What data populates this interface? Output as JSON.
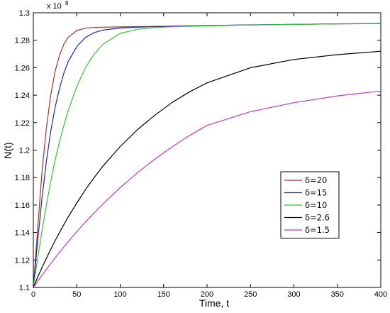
{
  "chart_data": {
    "type": "line",
    "title": "",
    "xlabel": "Time, t",
    "ylabel": "N(t)",
    "y_scale_label": "x 10",
    "y_scale_exponent": "8",
    "xlim": [
      0,
      400
    ],
    "ylim": [
      1.1,
      1.3
    ],
    "x_ticks": [
      0,
      50,
      100,
      150,
      200,
      250,
      300,
      350,
      400
    ],
    "y_ticks": [
      1.1,
      1.12,
      1.14,
      1.16,
      1.18,
      1.2,
      1.22,
      1.24,
      1.26,
      1.28,
      1.3
    ],
    "y_tick_labels": [
      "1.1",
      "1.12",
      "1.14",
      "1.16",
      "1.18",
      "1.2",
      "1.22",
      "1.24",
      "1.26",
      "1.28",
      "1.3"
    ],
    "grid": false,
    "legend_position": "center-right",
    "x": [
      0,
      5,
      10,
      15,
      20,
      25,
      30,
      35,
      40,
      50,
      60,
      70,
      80,
      100,
      120,
      140,
      160,
      180,
      200,
      250,
      300,
      350,
      400
    ],
    "series": [
      {
        "name": "δ=20",
        "color": "#b03020",
        "values": [
          1.1,
          1.1428,
          1.1847,
          1.2161,
          1.24,
          1.2572,
          1.2689,
          1.277,
          1.282,
          1.2871,
          1.2888,
          1.2893,
          1.2895,
          1.2897,
          1.2899,
          1.2901,
          1.2903,
          1.2905,
          1.2907,
          1.2911,
          1.2915,
          1.2919,
          1.2922
        ]
      },
      {
        "name": "δ=15",
        "color": "#2020c8",
        "values": [
          1.1,
          1.1338,
          1.1652,
          1.1918,
          1.2135,
          1.2309,
          1.2447,
          1.2558,
          1.2643,
          1.2754,
          1.282,
          1.2856,
          1.2874,
          1.2889,
          1.2895,
          1.2899,
          1.2902,
          1.2905,
          1.2907,
          1.2912,
          1.2916,
          1.292,
          1.2923
        ]
      },
      {
        "name": "δ=10",
        "color": "#30c830",
        "values": [
          1.1,
          1.1213,
          1.1415,
          1.16,
          1.177,
          1.1925,
          1.206,
          1.2178,
          1.2285,
          1.2465,
          1.26,
          1.27,
          1.277,
          1.285,
          1.288,
          1.2892,
          1.2898,
          1.2902,
          1.2905,
          1.2911,
          1.2915,
          1.2919,
          1.2922
        ]
      },
      {
        "name": "δ=2.6",
        "color": "#000000",
        "values": [
          1.1,
          1.1075,
          1.1145,
          1.1212,
          1.1277,
          1.1339,
          1.1399,
          1.1456,
          1.1512,
          1.1615,
          1.1712,
          1.18,
          1.1882,
          1.2026,
          1.215,
          1.2255,
          1.2348,
          1.2425,
          1.249,
          1.26,
          1.266,
          1.2695,
          1.272
        ]
      },
      {
        "name": "δ=1.5",
        "color": "#cc33cc",
        "values": [
          1.1,
          1.1045,
          1.1089,
          1.1132,
          1.1174,
          1.1215,
          1.1255,
          1.1294,
          1.1332,
          1.1406,
          1.1476,
          1.1543,
          1.1607,
          1.1727,
          1.1836,
          1.1935,
          1.2025,
          1.2107,
          1.218,
          1.228,
          1.2345,
          1.2395,
          1.243
        ]
      }
    ]
  }
}
